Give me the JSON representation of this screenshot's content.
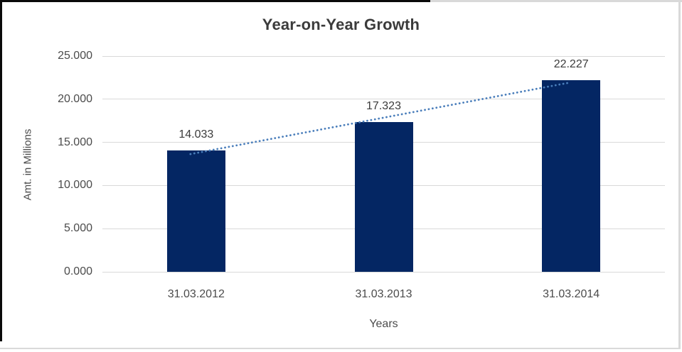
{
  "chart_data": {
    "type": "bar",
    "title": "Year-on-Year Growth",
    "xlabel": "Years",
    "ylabel": "Amt. in Millions",
    "categories": [
      "31.03.2012",
      "31.03.2013",
      "31.03.2014"
    ],
    "values": [
      14.033,
      17.323,
      22.227
    ],
    "data_labels": [
      "14.033",
      "17.323",
      "22.227"
    ],
    "yticks": [
      0,
      5,
      10,
      15,
      20,
      25
    ],
    "ytick_labels": [
      "0.000",
      "5.000",
      "10.000",
      "15.000",
      "20.000",
      "25.000"
    ],
    "ylim": [
      0,
      25
    ],
    "grid": true,
    "legend": false,
    "trendline": {
      "type": "linear",
      "style": "dotted"
    },
    "colors": {
      "bar": "#042663",
      "trendline": "#4a7ebb",
      "gridline": "#d9d9d9",
      "title_text": "#3b3b3b",
      "label_text": "#4b4b4b",
      "background": "#ffffff"
    }
  }
}
